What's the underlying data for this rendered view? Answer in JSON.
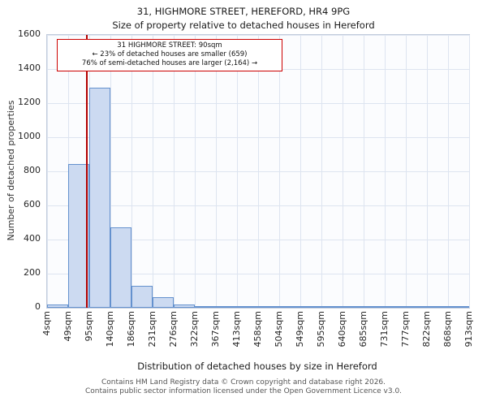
{
  "title": "31, HIGHMORE STREET, HEREFORD, HR4 9PG",
  "subtitle": "Size of property relative to detached houses in Hereford",
  "annotation": {
    "line1": "31 HIGHMORE STREET: 90sqm",
    "line2": "← 23% of detached houses are smaller (659)",
    "line3": "76% of semi-detached houses are larger (2,164) →",
    "border_color": "#cc0000"
  },
  "chart_data": {
    "type": "bar",
    "title": "Size of property relative to detached houses in Hereford",
    "xlabel": "Distribution of detached houses by size in Hereford",
    "ylabel": "Number of detached properties",
    "categories": [
      "4sqm",
      "49sqm",
      "95sqm",
      "140sqm",
      "186sqm",
      "231sqm",
      "276sqm",
      "322sqm",
      "367sqm",
      "413sqm",
      "458sqm",
      "504sqm",
      "549sqm",
      "595sqm",
      "640sqm",
      "685sqm",
      "731sqm",
      "777sqm",
      "822sqm",
      "868sqm",
      "913sqm"
    ],
    "values": [
      20,
      845,
      1290,
      470,
      130,
      60,
      20,
      10,
      5,
      3,
      0,
      0,
      0,
      0,
      0,
      0,
      0,
      0,
      0,
      0
    ],
    "ylim": [
      0,
      1600
    ],
    "yticks": [
      0,
      200,
      400,
      600,
      800,
      1000,
      1200,
      1400,
      1600
    ],
    "grid": true,
    "legend": "none",
    "marker": {
      "label": "31 HIGHMORE STREET",
      "value_sqm": 90,
      "color": "#b30000"
    },
    "bar_fill": "#ccdaf1",
    "bar_edge": "#6491ce"
  },
  "footer": {
    "line1": "Contains HM Land Registry data © Crown copyright and database right 2026.",
    "line2": "Contains public sector information licensed under the Open Government Licence v3.0."
  }
}
